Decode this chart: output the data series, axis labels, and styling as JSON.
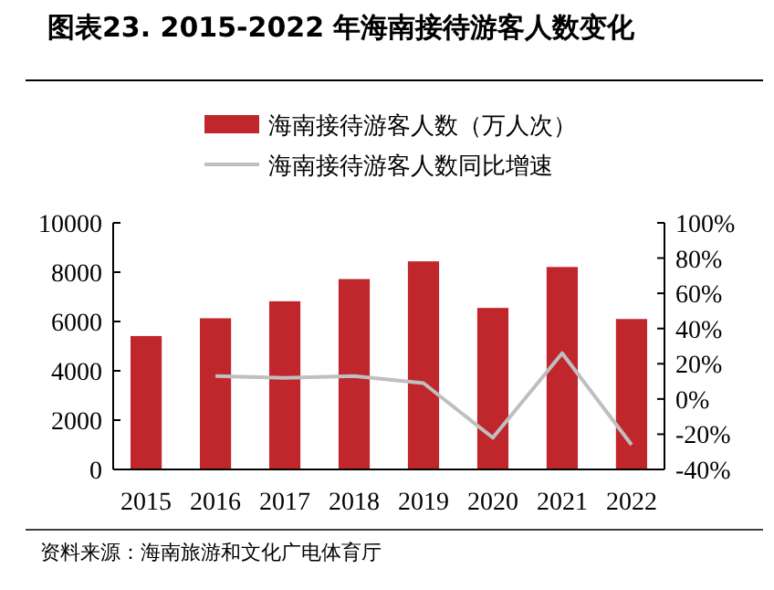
{
  "chart_data": {
    "type": "bar",
    "title": "图表23. 2015-2022 年海南接待游客人数变化",
    "categories": [
      "2015",
      "2016",
      "2017",
      "2018",
      "2019",
      "2020",
      "2021",
      "2022"
    ],
    "series": [
      {
        "name": "海南接待游客人数（万人次）",
        "color": "#c0272d",
        "values": [
          5410,
          6130,
          6820,
          7720,
          8440,
          6550,
          8210,
          6100
        ]
      },
      {
        "name": "海南接待游客人数同比增速",
        "type": "line",
        "axis": "y2",
        "color": "#bfbfbf",
        "values": [
          null,
          13,
          12,
          13,
          9,
          -22,
          26,
          -26
        ]
      }
    ],
    "ylim": [
      0,
      10000
    ],
    "yticks": [
      0,
      2000,
      4000,
      6000,
      8000,
      10000
    ],
    "y2lim": [
      -40,
      100
    ],
    "y2ticks": [
      {
        "value": -40,
        "label": "-40%"
      },
      {
        "value": -20,
        "label": "-20%"
      },
      {
        "value": 0,
        "label": "0%"
      },
      {
        "value": 20,
        "label": "20%"
      },
      {
        "value": 40,
        "label": "40%"
      },
      {
        "value": 60,
        "label": "60%"
      },
      {
        "value": 80,
        "label": "80%"
      },
      {
        "value": 100,
        "label": "100%"
      }
    ],
    "legend": "top",
    "marker": "none",
    "annotations": [
      "资料来源：海南旅游和文化广电体育厅"
    ]
  }
}
